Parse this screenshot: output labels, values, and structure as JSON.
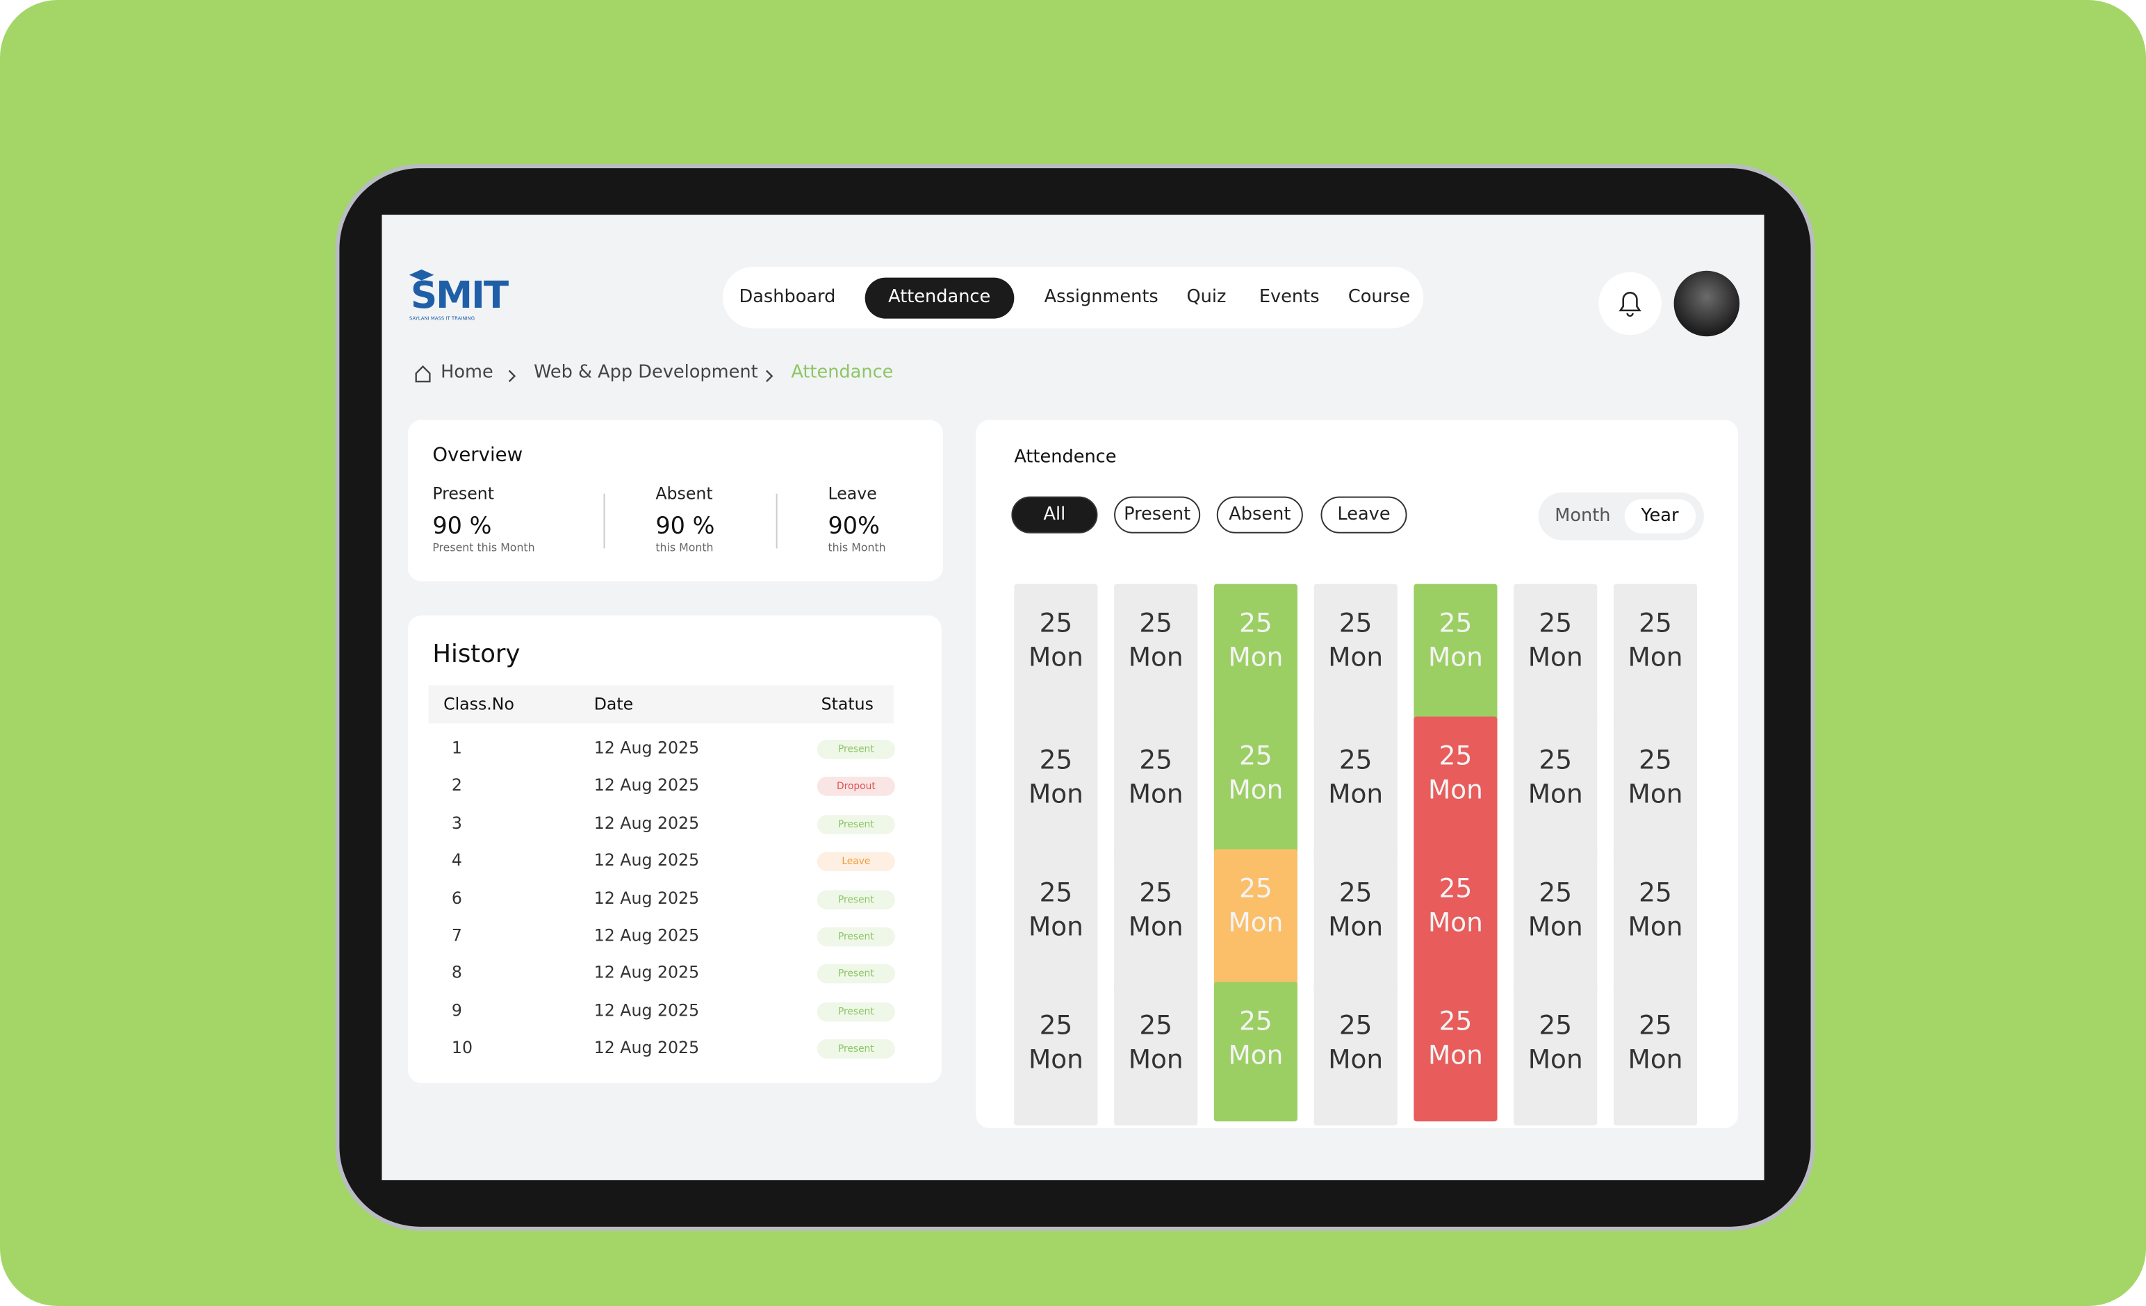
{
  "logo": {
    "text": "SMIT",
    "tagline": "SAYLANI MASS IT TRAINING"
  },
  "nav": [
    "Dashboard",
    "Attendance",
    "Assignments",
    "Quiz",
    "Events",
    "Course"
  ],
  "breadcrumb": [
    "Home",
    "Web & App Development",
    "Attendance"
  ],
  "overview": {
    "title": "Overview",
    "items": [
      {
        "label": "Present",
        "value": "90 %",
        "note": "Present this Month"
      },
      {
        "label": "Absent",
        "value": "90 %",
        "note": "this Month"
      },
      {
        "label": "Leave",
        "value": "90%",
        "note": "this Month"
      }
    ]
  },
  "history": {
    "title": "History",
    "columns": [
      "Class.No",
      "Date",
      "Status"
    ],
    "rows": [
      {
        "cells": [
          "1",
          "12 Aug 2025",
          "Present"
        ],
        "tone": "#8cc665"
      },
      {
        "cells": [
          "2",
          "12 Aug 2025",
          "Dropout"
        ],
        "tone": "#e05252"
      },
      {
        "cells": [
          "3",
          "12 Aug 2025",
          "Present"
        ],
        "tone": "#8cc665"
      },
      {
        "cells": [
          "4",
          "12 Aug 2025",
          "Leave"
        ],
        "tone": "#f39a3c"
      },
      {
        "cells": [
          "6",
          "12 Aug 2025",
          "Present"
        ],
        "tone": "#8cc665"
      },
      {
        "cells": [
          "7",
          "12 Aug 2025",
          "Present"
        ],
        "tone": "#8cc665"
      },
      {
        "cells": [
          "8",
          "12 Aug 2025",
          "Present"
        ],
        "tone": "#8cc665"
      },
      {
        "cells": [
          "9",
          "12 Aug 2025",
          "Present"
        ],
        "tone": "#8cc665"
      },
      {
        "cells": [
          "10",
          "12 Aug 2025",
          "Present"
        ],
        "tone": "#8cc665"
      }
    ]
  },
  "attendance": {
    "title": "Attendence",
    "filters": [
      "All",
      "Present",
      "Absent",
      "Leave"
    ],
    "toggle": [
      "Month",
      "Year"
    ],
    "cells": [
      [
        {
          "day": "25",
          "weekday": "Mon",
          "color": "#ececec"
        },
        {
          "day": "25",
          "weekday": "Mon",
          "color": "#ececec"
        },
        {
          "day": "25",
          "weekday": "Mon",
          "color": "#9ccf63"
        },
        {
          "day": "25",
          "weekday": "Mon",
          "color": "#ececec"
        },
        {
          "day": "25",
          "weekday": "Mon",
          "color": "#9ccf63"
        },
        {
          "day": "25",
          "weekday": "Mon",
          "color": "#ececec"
        },
        {
          "day": "25",
          "weekday": "Mon",
          "color": "#ececec"
        }
      ],
      [
        {
          "day": "25",
          "weekday": "Mon",
          "color": "#ececec"
        },
        {
          "day": "25",
          "weekday": "Mon",
          "color": "#ececec"
        },
        {
          "day": "25",
          "weekday": "Mon",
          "color": "#9ccf63"
        },
        {
          "day": "25",
          "weekday": "Mon",
          "color": "#ececec"
        },
        {
          "day": "25",
          "weekday": "Mon",
          "color": "#e85c5c"
        },
        {
          "day": "25",
          "weekday": "Mon",
          "color": "#ececec"
        },
        {
          "day": "25",
          "weekday": "Mon",
          "color": "#ececec"
        }
      ],
      [
        {
          "day": "25",
          "weekday": "Mon",
          "color": "#ececec"
        },
        {
          "day": "25",
          "weekday": "Mon",
          "color": "#ececec"
        },
        {
          "day": "25",
          "weekday": "Mon",
          "color": "#fbbf6a"
        },
        {
          "day": "25",
          "weekday": "Mon",
          "color": "#ececec"
        },
        {
          "day": "25",
          "weekday": "Mon",
          "color": "#e85c5c"
        },
        {
          "day": "25",
          "weekday": "Mon",
          "color": "#ececec"
        },
        {
          "day": "25",
          "weekday": "Mon",
          "color": "#ececec"
        }
      ],
      [
        {
          "day": "25",
          "weekday": "Mon",
          "color": "#ececec"
        },
        {
          "day": "25",
          "weekday": "Mon",
          "color": "#ececec"
        },
        {
          "day": "25",
          "weekday": "Mon",
          "color": "#9ccf63"
        },
        {
          "day": "25",
          "weekday": "Mon",
          "color": "#ececec"
        },
        {
          "day": "25",
          "weekday": "Mon",
          "color": "#e85c5c"
        },
        {
          "day": "25",
          "weekday": "Mon",
          "color": "#ececec"
        },
        {
          "day": "25",
          "weekday": "Mon",
          "color": "#ececec"
        }
      ]
    ]
  }
}
